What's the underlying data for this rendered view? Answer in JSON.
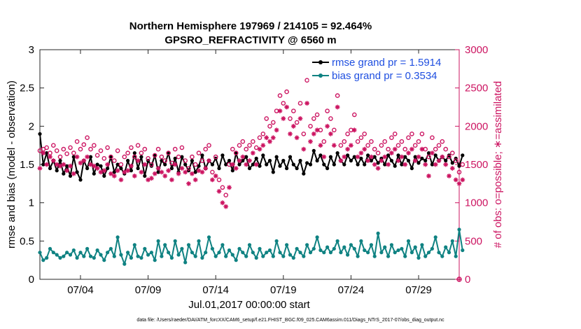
{
  "chart_data": {
    "type": "line",
    "title_line1": "Northern Hemisphere 197969 / 214105 = 92.464%",
    "title_line2": "GPSRO_REFRACTIVITY @ 6560 m",
    "xlabel": "Jul.01,2017 00:00:00 start",
    "ylabel_left": "rmse and bias (model - observation)",
    "ylabel_right": "# of obs: o=possible; ∗=assimilated",
    "footnote": "data file: /Users/raeder/DAI/ATM_forcXX/CAM6_setup/f.e21.FHIST_BGC.f09_025.CAM6assim.011/Diags_NTrS_2017-07/obs_diag_output.nc",
    "xlim": [
      1.0,
      32.0
    ],
    "ylim_left": [
      0,
      3
    ],
    "ylim_right": [
      0,
      3000
    ],
    "yticks_left": [
      "0",
      "0.5",
      "1",
      "1.5",
      "2",
      "2.5",
      "3"
    ],
    "yticks_left_values": [
      0,
      0.5,
      1,
      1.5,
      2,
      2.5,
      3
    ],
    "yticks_right": [
      "0",
      "500",
      "1000",
      "1500",
      "2000",
      "2500",
      "3000"
    ],
    "yticks_right_values": [
      0,
      500,
      1000,
      1500,
      2000,
      2500,
      3000
    ],
    "xticks": [
      "07/04",
      "07/09",
      "07/14",
      "07/19",
      "07/24",
      "07/29"
    ],
    "xticks_values": [
      4.0,
      9.0,
      14.0,
      19.0,
      24.0,
      29.0
    ],
    "colors": {
      "rmse": "#000000",
      "bias": "#0f8282",
      "obs": "#cc1461",
      "legend_text": "#1f4fe0",
      "right_axis": "#cc1461"
    },
    "legend": [
      {
        "label": "rmse grand pr = 1.5914",
        "series": "rmse"
      },
      {
        "label": "bias grand pr = 0.3534",
        "series": "bias"
      }
    ],
    "series": [
      {
        "name": "rmse",
        "axis": "left",
        "x_start": 1.0,
        "x_step": 0.25,
        "values": [
          1.9,
          1.5,
          1.65,
          1.45,
          1.55,
          1.42,
          1.55,
          1.38,
          1.48,
          1.35,
          1.6,
          1.4,
          1.3,
          1.55,
          1.45,
          1.6,
          1.38,
          1.5,
          1.48,
          1.35,
          1.45,
          1.6,
          1.4,
          1.5,
          1.45,
          1.38,
          1.55,
          1.42,
          1.65,
          1.45,
          1.6,
          1.35,
          1.55,
          1.48,
          1.62,
          1.4,
          1.55,
          1.5,
          1.65,
          1.45,
          1.58,
          1.4,
          1.6,
          1.5,
          1.42,
          1.55,
          1.4,
          1.48,
          1.62,
          1.45,
          1.55,
          1.5,
          1.58,
          1.45,
          1.62,
          1.5,
          1.55,
          1.42,
          1.65,
          1.5,
          1.55,
          1.6,
          1.45,
          1.5,
          1.58,
          1.48,
          1.62,
          1.5,
          1.55,
          1.4,
          1.6,
          1.48,
          1.55,
          1.45,
          1.6,
          1.5,
          1.45,
          1.55,
          1.38,
          1.52,
          1.5,
          1.68,
          1.55,
          1.62,
          1.5,
          1.45,
          1.6,
          1.5,
          1.65,
          1.55,
          1.5,
          1.62,
          1.55,
          1.6,
          1.5,
          1.58,
          1.5,
          1.62,
          1.55,
          1.6,
          1.52,
          1.58,
          1.5,
          1.62,
          1.55,
          1.48,
          1.62,
          1.5,
          1.6,
          1.55,
          1.45,
          1.6,
          1.52,
          1.58,
          1.55,
          1.65,
          1.5,
          1.62,
          1.55,
          1.6,
          1.55,
          1.62,
          1.52,
          1.58,
          1.48,
          1.62
        ]
      },
      {
        "name": "bias",
        "axis": "left",
        "x_start": 1.0,
        "x_step": 0.25,
        "values": [
          0.35,
          0.25,
          0.28,
          0.4,
          0.35,
          0.32,
          0.28,
          0.3,
          0.35,
          0.32,
          0.38,
          0.28,
          0.35,
          0.3,
          0.4,
          0.3,
          0.28,
          0.38,
          0.32,
          0.25,
          0.35,
          0.4,
          0.3,
          0.55,
          0.32,
          0.2,
          0.35,
          0.28,
          0.45,
          0.3,
          0.28,
          0.4,
          0.32,
          0.35,
          0.25,
          0.5,
          0.3,
          0.45,
          0.35,
          0.28,
          0.5,
          0.32,
          0.4,
          0.22,
          0.45,
          0.35,
          0.3,
          0.5,
          0.28,
          0.35,
          0.55,
          0.4,
          0.3,
          0.35,
          0.45,
          0.3,
          0.38,
          0.32,
          0.25,
          0.4,
          0.35,
          0.3,
          0.45,
          0.35,
          0.28,
          0.4,
          0.3,
          0.35,
          0.38,
          0.3,
          0.5,
          0.35,
          0.3,
          0.45,
          0.32,
          0.28,
          0.4,
          0.35,
          0.3,
          0.45,
          0.35,
          0.4,
          0.55,
          0.38,
          0.35,
          0.42,
          0.35,
          0.4,
          0.5,
          0.35,
          0.42,
          0.32,
          0.45,
          0.4,
          0.3,
          0.5,
          0.38,
          0.35,
          0.45,
          0.3,
          0.6,
          0.35,
          0.42,
          0.3,
          0.45,
          0.35,
          0.38,
          0.4,
          0.3,
          0.5,
          0.35,
          0.42,
          0.28,
          0.45,
          0.3,
          0.35,
          0.4,
          0.55,
          0.35,
          0.3,
          0.42,
          0.35,
          0.5,
          0.3,
          0.65,
          0.38
        ]
      },
      {
        "name": "possible",
        "axis": "right",
        "marker": "o",
        "x_start": 1.0,
        "x_step": 0.25,
        "values": [
          1680,
          1700,
          1720,
          1650,
          1750,
          1680,
          1600,
          1700,
          1640,
          1720,
          1650,
          1800,
          1700,
          1760,
          1850,
          1700,
          1750,
          1620,
          1680,
          1580,
          1720,
          1600,
          1550,
          1680,
          1500,
          1600,
          1650,
          1720,
          1600,
          1750,
          1650,
          1700,
          1580,
          1500,
          1620,
          1700,
          1600,
          1550,
          1650,
          1520,
          1700,
          1600,
          1720,
          1550,
          1450,
          1600,
          1500,
          1650,
          1550,
          1700,
          1750,
          1400,
          1600,
          1300,
          1200,
          1100,
          1500,
          1700,
          1650,
          1750,
          1800,
          1700,
          1750,
          1800,
          1720,
          1850,
          1900,
          2100,
          2000,
          2050,
          2200,
          2400,
          2300,
          2450,
          2100,
          2200,
          2050,
          2300,
          1900,
          2600,
          2000,
          2100,
          2150,
          1950,
          1800,
          2200,
          2100,
          1950,
          2400,
          1750,
          1800,
          1900,
          1950,
          2150,
          1800,
          1850,
          1900,
          1750,
          1800,
          1700,
          1650,
          1750,
          1800,
          1700,
          1850,
          1900,
          1750,
          1800,
          1700,
          1850,
          1900,
          1750,
          1800,
          1900,
          1700,
          1600,
          1850,
          1700,
          1750,
          1800,
          1700,
          1600,
          1650,
          1550,
          1400,
          1500
        ]
      },
      {
        "name": "assimilated",
        "axis": "right",
        "marker": "*",
        "x_start": 1.0,
        "x_step": 0.25,
        "values": [
          1450,
          1650,
          1500,
          1600,
          1550,
          1500,
          1480,
          1500,
          1420,
          1480,
          1380,
          1600,
          1520,
          1550,
          1600,
          1500,
          1480,
          1450,
          1400,
          1420,
          1500,
          1380,
          1350,
          1420,
          1300,
          1400,
          1420,
          1480,
          1350,
          1550,
          1400,
          1500,
          1300,
          1320,
          1380,
          1450,
          1400,
          1350,
          1420,
          1300,
          1500,
          1380,
          1450,
          1400,
          1250,
          1380,
          1300,
          1420,
          1400,
          1450,
          1550,
          1300,
          1350,
          1150,
          1000,
          950,
          1200,
          1500,
          1450,
          1550,
          1600,
          1500,
          1550,
          1650,
          1500,
          1700,
          1750,
          1850,
          1800,
          1850,
          1950,
          2200,
          2100,
          2250,
          1900,
          2000,
          1850,
          2100,
          1700,
          2300,
          1800,
          1900,
          1950,
          1750,
          1600,
          2000,
          1900,
          1750,
          2250,
          1550,
          1600,
          1700,
          1750,
          1950,
          1600,
          1650,
          1700,
          1550,
          1600,
          1500,
          1450,
          1550,
          1600,
          1500,
          1650,
          1700,
          1550,
          1600,
          1500,
          1650,
          1700,
          1550,
          1600,
          1700,
          1500,
          1350,
          1650,
          1500,
          1550,
          1600,
          1500,
          1350,
          1450,
          1300,
          1250,
          1300
        ]
      }
    ]
  }
}
